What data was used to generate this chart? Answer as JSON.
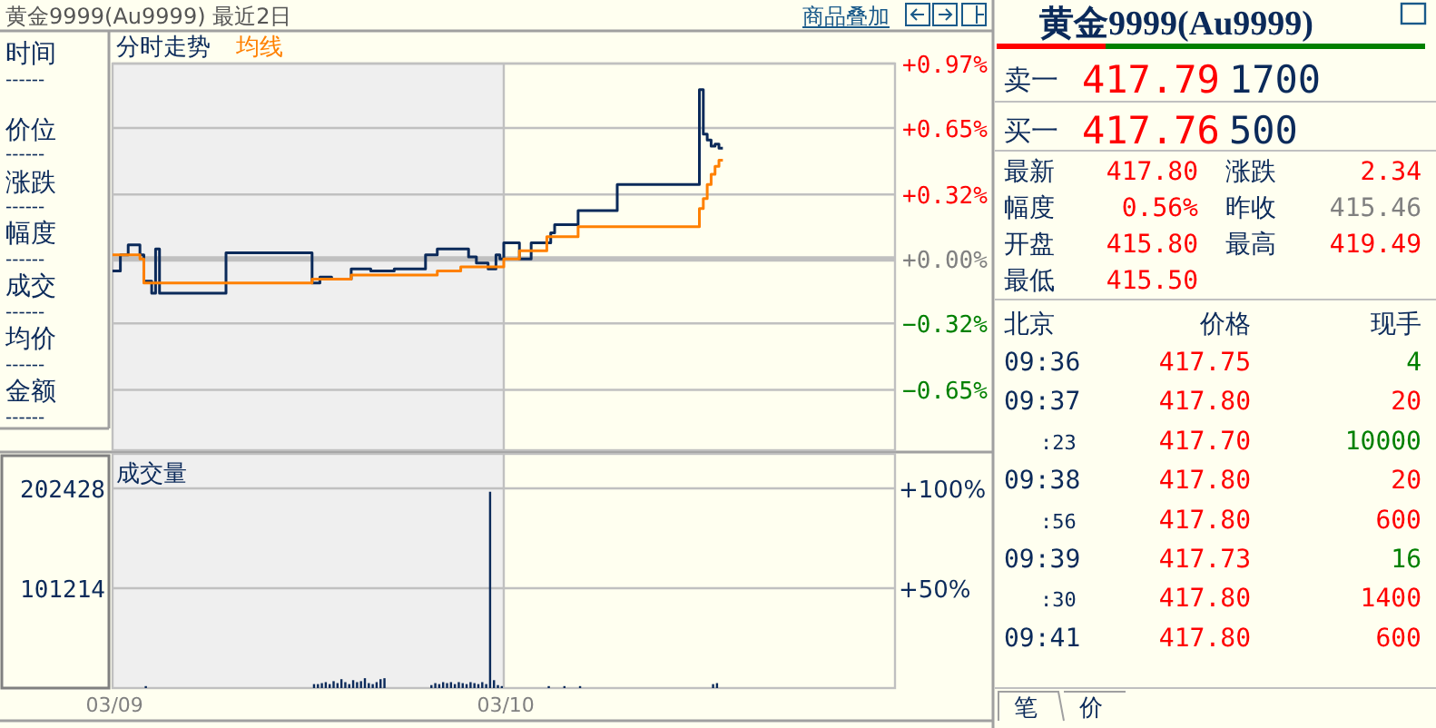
{
  "chart_data": [
    {
      "type": "step",
      "title": "黄金9999(Au9999) 最近2日",
      "legend": "top left",
      "grid": true,
      "tick_labels": "y",
      "categories": [
        "03/09",
        null,
        null,
        null,
        null,
        null,
        null,
        null,
        null,
        null,
        null,
        null,
        null,
        null,
        null,
        null,
        null,
        null,
        null,
        null,
        null,
        null,
        null,
        null,
        null,
        null,
        null,
        null,
        null,
        null,
        null,
        null,
        null,
        null,
        null,
        null,
        null,
        null,
        null,
        null,
        null,
        null,
        null,
        null,
        null,
        null,
        null,
        null,
        null,
        null,
        null,
        null,
        null,
        null,
        null,
        null,
        null,
        null,
        null,
        null,
        null,
        null,
        null,
        null,
        null,
        null,
        null,
        null,
        null,
        null,
        null,
        null,
        null,
        null,
        null,
        null,
        null,
        null,
        null,
        null,
        null,
        null,
        null,
        null,
        null,
        null,
        null,
        null,
        null,
        null,
        null,
        null,
        null,
        null,
        null,
        null,
        null,
        null,
        null,
        null,
        "03/10",
        null,
        null,
        null,
        null,
        null,
        null,
        null,
        null,
        null,
        null,
        null,
        null,
        null,
        null,
        null,
        null,
        null,
        null,
        null,
        null,
        null,
        null,
        null,
        null,
        null,
        null,
        null,
        null,
        null,
        null,
        null,
        null,
        null,
        null,
        null,
        null,
        null,
        null,
        null,
        null,
        null,
        null,
        null,
        null,
        null,
        null,
        null,
        null,
        null,
        null,
        null,
        null,
        null,
        null,
        null,
        null,
        null,
        null,
        null,
        null,
        null,
        null,
        null,
        null,
        null,
        null,
        null,
        null,
        null,
        null,
        null,
        null,
        null,
        null,
        null,
        null,
        null,
        null,
        null,
        null,
        null,
        null,
        null,
        null,
        null,
        null,
        null,
        null,
        null,
        null,
        null,
        null,
        null,
        null,
        null,
        null,
        null,
        null,
        null
      ],
      "ylim": [
        -0.95,
        0.97
      ],
      "yticks": [
        {
          "value": 0.97,
          "label": "+0.97%"
        },
        {
          "value": 0.65,
          "label": "+0.65%"
        },
        {
          "value": 0.32,
          "label": "+0.32%"
        },
        {
          "value": 0,
          "label": "+0.00%"
        },
        {
          "value": -0.32,
          "label": "−0.32%"
        },
        {
          "value": -0.65,
          "label": "−0.65%"
        }
      ],
      "bands": [
        {
          "axis": "x",
          "from": "03/09",
          "to": "03/10",
          "color": "#efefef"
        }
      ],
      "annotations": [
        "商品叠加"
      ],
      "series": [
        {
          "name": "分时走势",
          "color": "#0b2a5a",
          "values": [
            -0.06,
            -0.06,
            0.02,
            0.02,
            0.07,
            0.07,
            0.07,
            0.02,
            -0.11,
            -0.11,
            -0.17,
            0.05,
            -0.17,
            -0.17,
            -0.17,
            -0.17,
            -0.17,
            -0.17,
            -0.17,
            -0.17,
            -0.17,
            -0.17,
            -0.17,
            -0.17,
            -0.17,
            -0.17,
            -0.17,
            -0.17,
            -0.17,
            0.03,
            0.03,
            0.03,
            0.03,
            0.03,
            0.03,
            0.03,
            0.03,
            0.03,
            0.03,
            0.03,
            0.03,
            0.03,
            0.03,
            0.03,
            0.03,
            0.03,
            0.03,
            0.03,
            0.03,
            0.03,
            0.03,
            -0.12,
            -0.12,
            -0.09,
            -0.09,
            -0.09,
            -0.1,
            -0.1,
            -0.1,
            -0.1,
            -0.1,
            -0.05,
            -0.05,
            -0.05,
            -0.05,
            -0.05,
            -0.06,
            -0.06,
            -0.06,
            -0.06,
            -0.06,
            -0.06,
            -0.05,
            -0.05,
            -0.05,
            -0.05,
            -0.05,
            -0.05,
            -0.05,
            -0.05,
            0.02,
            0.02,
            0.02,
            0.05,
            0.05,
            0.05,
            0.05,
            0.05,
            0.05,
            0.05,
            0.05,
            0.01,
            0.01,
            -0.02,
            -0.02,
            -0.02,
            -0.05,
            -0.05,
            0.02,
            0,
            0.08,
            0.08,
            0.08,
            0.08,
            0,
            0,
            0,
            0.08,
            0.08,
            0.08,
            0.08,
            0.08,
            0.13,
            0.17,
            0.17,
            0.17,
            0.17,
            0.17,
            0.17,
            0.24,
            0.24,
            0.24,
            0.24,
            0.24,
            0.24,
            0.24,
            0.24,
            0.24,
            0.24,
            0.37,
            0.37,
            0.37,
            0.37,
            0.37,
            0.37,
            0.37,
            0.37,
            0.37,
            0.37,
            0.37,
            0.37,
            0.37,
            0.37,
            0.37,
            0.37,
            0.37,
            0.37,
            0.37,
            0.37,
            0.37,
            0.84,
            0.62,
            0.59,
            0.56,
            0.57,
            0.55,
            null,
            null,
            null,
            null,
            null,
            null,
            null,
            null,
            null,
            null,
            null,
            null,
            null,
            null,
            null,
            null,
            null,
            null,
            null,
            null,
            null,
            null,
            null,
            null,
            null,
            null,
            null,
            null,
            null,
            null,
            null,
            null,
            null,
            null,
            null,
            null,
            null,
            null,
            null,
            null,
            null,
            null,
            null,
            null
          ]
        },
        {
          "name": "均线",
          "color": "#ff8000",
          "values": [
            0.02,
            0.02,
            0.02,
            0.02,
            0.02,
            0.02,
            0.02,
            0,
            -0.12,
            -0.12,
            -0.12,
            -0.12,
            -0.12,
            -0.12,
            -0.12,
            -0.12,
            -0.12,
            -0.12,
            -0.12,
            -0.12,
            -0.12,
            -0.12,
            -0.12,
            -0.12,
            -0.12,
            -0.12,
            -0.12,
            -0.12,
            -0.12,
            -0.12,
            -0.12,
            -0.12,
            -0.12,
            -0.12,
            -0.12,
            -0.12,
            -0.12,
            -0.12,
            -0.12,
            -0.12,
            -0.12,
            -0.12,
            -0.12,
            -0.12,
            -0.12,
            -0.12,
            -0.12,
            -0.12,
            -0.12,
            -0.12,
            -0.12,
            -0.1,
            -0.1,
            -0.1,
            -0.1,
            -0.1,
            -0.1,
            -0.1,
            -0.1,
            -0.1,
            -0.1,
            -0.08,
            -0.08,
            -0.08,
            -0.08,
            -0.08,
            -0.08,
            -0.08,
            -0.08,
            -0.08,
            -0.08,
            -0.08,
            -0.08,
            -0.08,
            -0.08,
            -0.08,
            -0.08,
            -0.08,
            -0.08,
            -0.08,
            -0.08,
            -0.08,
            -0.08,
            -0.06,
            -0.06,
            -0.06,
            -0.06,
            -0.06,
            -0.06,
            -0.04,
            -0.04,
            -0.04,
            -0.04,
            -0.04,
            -0.04,
            -0.04,
            -0.04,
            -0.04,
            -0.04,
            -0.04,
            0,
            0,
            0,
            0,
            0.04,
            0.04,
            0.04,
            0.04,
            0.04,
            0.04,
            0.04,
            0.11,
            0.11,
            0.11,
            0.11,
            0.11,
            0.11,
            0.11,
            0.11,
            0.16,
            0.16,
            0.16,
            0.16,
            0.16,
            0.16,
            0.16,
            0.16,
            0.16,
            0.16,
            0.16,
            0.16,
            0.16,
            0.16,
            0.16,
            0.16,
            0.16,
            0.16,
            0.16,
            0.16,
            0.16,
            0.16,
            0.16,
            0.16,
            0.16,
            0.16,
            0.16,
            0.16,
            0.16,
            0.16,
            0.16,
            0.25,
            0.3,
            0.37,
            0.42,
            0.46,
            0.49,
            null,
            null,
            null,
            null,
            null,
            null,
            null,
            null,
            null,
            null,
            null,
            null,
            null,
            null,
            null,
            null,
            null,
            null,
            null,
            null,
            null,
            null,
            null,
            null,
            null,
            null,
            null,
            null,
            null,
            null,
            null,
            null,
            null,
            null,
            null,
            null,
            null,
            null,
            null,
            null,
            null,
            null,
            null,
            null
          ]
        }
      ]
    },
    {
      "type": "bar",
      "title": "成交量",
      "grid": true,
      "categories": [
        "03/09",
        null,
        null,
        null,
        null,
        null,
        null,
        null,
        null,
        null,
        null,
        null,
        null,
        null,
        null,
        null,
        null,
        null,
        null,
        null,
        null,
        null,
        null,
        null,
        null,
        null,
        null,
        null,
        null,
        null,
        null,
        null,
        null,
        null,
        null,
        null,
        null,
        null,
        null,
        null,
        null,
        null,
        null,
        null,
        null,
        null,
        null,
        null,
        null,
        null,
        null,
        null,
        null,
        null,
        null,
        null,
        null,
        null,
        null,
        null,
        null,
        null,
        null,
        null,
        null,
        null,
        null,
        null,
        null,
        null,
        null,
        null,
        null,
        null,
        null,
        null,
        null,
        null,
        null,
        null,
        null,
        null,
        null,
        null,
        null,
        null,
        null,
        null,
        null,
        null,
        null,
        null,
        null,
        null,
        null,
        null,
        null,
        null,
        null,
        null,
        "03/10",
        null,
        null,
        null,
        null,
        null,
        null,
        null,
        null,
        null,
        null,
        null,
        null,
        null,
        null,
        null,
        null,
        null,
        null,
        null,
        null,
        null,
        null,
        null,
        null,
        null,
        null,
        null,
        null,
        null,
        null,
        null,
        null,
        null,
        null,
        null,
        null,
        null,
        null,
        null,
        null,
        null,
        null,
        null,
        null,
        null,
        null,
        null,
        null,
        null,
        null,
        null,
        null,
        null,
        null,
        null,
        null,
        null,
        null,
        null,
        null,
        null,
        null,
        null,
        null,
        null,
        null,
        null,
        null,
        null,
        null,
        null,
        null,
        null,
        null,
        null,
        null,
        null,
        null,
        null,
        null,
        null,
        null,
        null,
        null,
        null,
        null,
        null,
        null,
        null,
        null,
        null,
        null,
        null,
        null,
        null,
        null,
        null,
        null,
        null
      ],
      "ylim": [
        0,
        237400
      ],
      "yticks": [
        101214,
        202428
      ],
      "y2lim": [
        0,
        117.3
      ],
      "y2ticks": [
        {
          "value": 50,
          "label": "+50%"
        },
        {
          "value": 100,
          "label": "+100%"
        }
      ],
      "bands": [
        {
          "axis": "x",
          "from": "03/09",
          "to": "03/10",
          "color": "#efefef"
        }
      ],
      "series": [
        {
          "color": "#0b2a5a",
          "values": [
            null,
            null,
            null,
            null,
            null,
            null,
            null,
            null,
            2000,
            null,
            null,
            null,
            null,
            null,
            null,
            null,
            null,
            null,
            null,
            null,
            null,
            null,
            null,
            null,
            null,
            null,
            null,
            null,
            null,
            null,
            null,
            null,
            null,
            null,
            null,
            null,
            null,
            null,
            null,
            null,
            null,
            null,
            null,
            null,
            null,
            null,
            null,
            null,
            null,
            null,
            null,
            4000,
            4000,
            5000,
            6000,
            4000,
            7000,
            5000,
            9000,
            6000,
            4000,
            8000,
            6000,
            7000,
            10000,
            5000,
            4000,
            6000,
            9000,
            10000,
            null,
            null,
            null,
            null,
            null,
            null,
            null,
            null,
            null,
            null,
            null,
            3000,
            5000,
            4000,
            6000,
            5000,
            6000,
            4000,
            6000,
            5000,
            4000,
            6000,
            5000,
            4000,
            6000,
            4000,
            199000,
            8000,
            3000,
            2000,
            null,
            null,
            null,
            null,
            null,
            null,
            null,
            null,
            null,
            null,
            null,
            2000,
            null,
            null,
            null,
            2000,
            null,
            null,
            null,
            2000,
            null,
            null,
            null,
            null,
            null,
            null,
            null,
            null,
            null,
            null,
            null,
            null,
            null,
            null,
            null,
            null,
            null,
            null,
            null,
            null,
            null,
            null,
            null,
            null,
            null,
            null,
            null,
            null,
            null,
            null,
            null,
            null,
            null,
            4000,
            5000,
            null,
            null,
            null,
            null,
            null,
            null,
            null,
            null,
            null,
            null,
            null,
            null,
            null,
            null,
            null,
            null,
            null,
            null,
            null,
            null,
            null,
            null,
            null,
            null,
            null,
            null,
            null,
            null,
            null,
            null,
            null,
            null,
            null,
            null,
            null,
            null,
            null,
            null,
            null,
            null,
            null,
            null,
            null,
            null,
            null
          ]
        }
      ]
    },
    {
      "type": "other",
      "title": "黄金9999(Au9999)",
      "annotations": [
        "卖一",
        "417.79",
        "1700",
        "买一",
        "417.76",
        "500",
        "最新",
        "417.80",
        "涨跌",
        "2.34",
        "幅度",
        "0.56%",
        "昨收",
        "415.46",
        "开盘",
        "415.80",
        "最高",
        "419.49",
        "最低",
        "415.50",
        "北京",
        "价格",
        "现手",
        "09:36",
        "417.75",
        "4",
        "09:37",
        "417.80",
        "20",
        ":23",
        "417.70",
        "10000",
        "09:38",
        "417.80",
        "20",
        ":56",
        "417.80",
        "600",
        "09:39",
        "417.73",
        "16",
        ":30",
        "417.80",
        "1400",
        "09:41",
        "417.80",
        "600",
        "笔",
        "价"
      ]
    },
    {
      "type": "other",
      "annotations": [
        "时间",
        "------",
        "价位",
        "------",
        "涨跌",
        "------",
        "幅度",
        "------",
        "成交",
        "------",
        "均价",
        "------",
        "金额",
        "------"
      ]
    }
  ]
}
